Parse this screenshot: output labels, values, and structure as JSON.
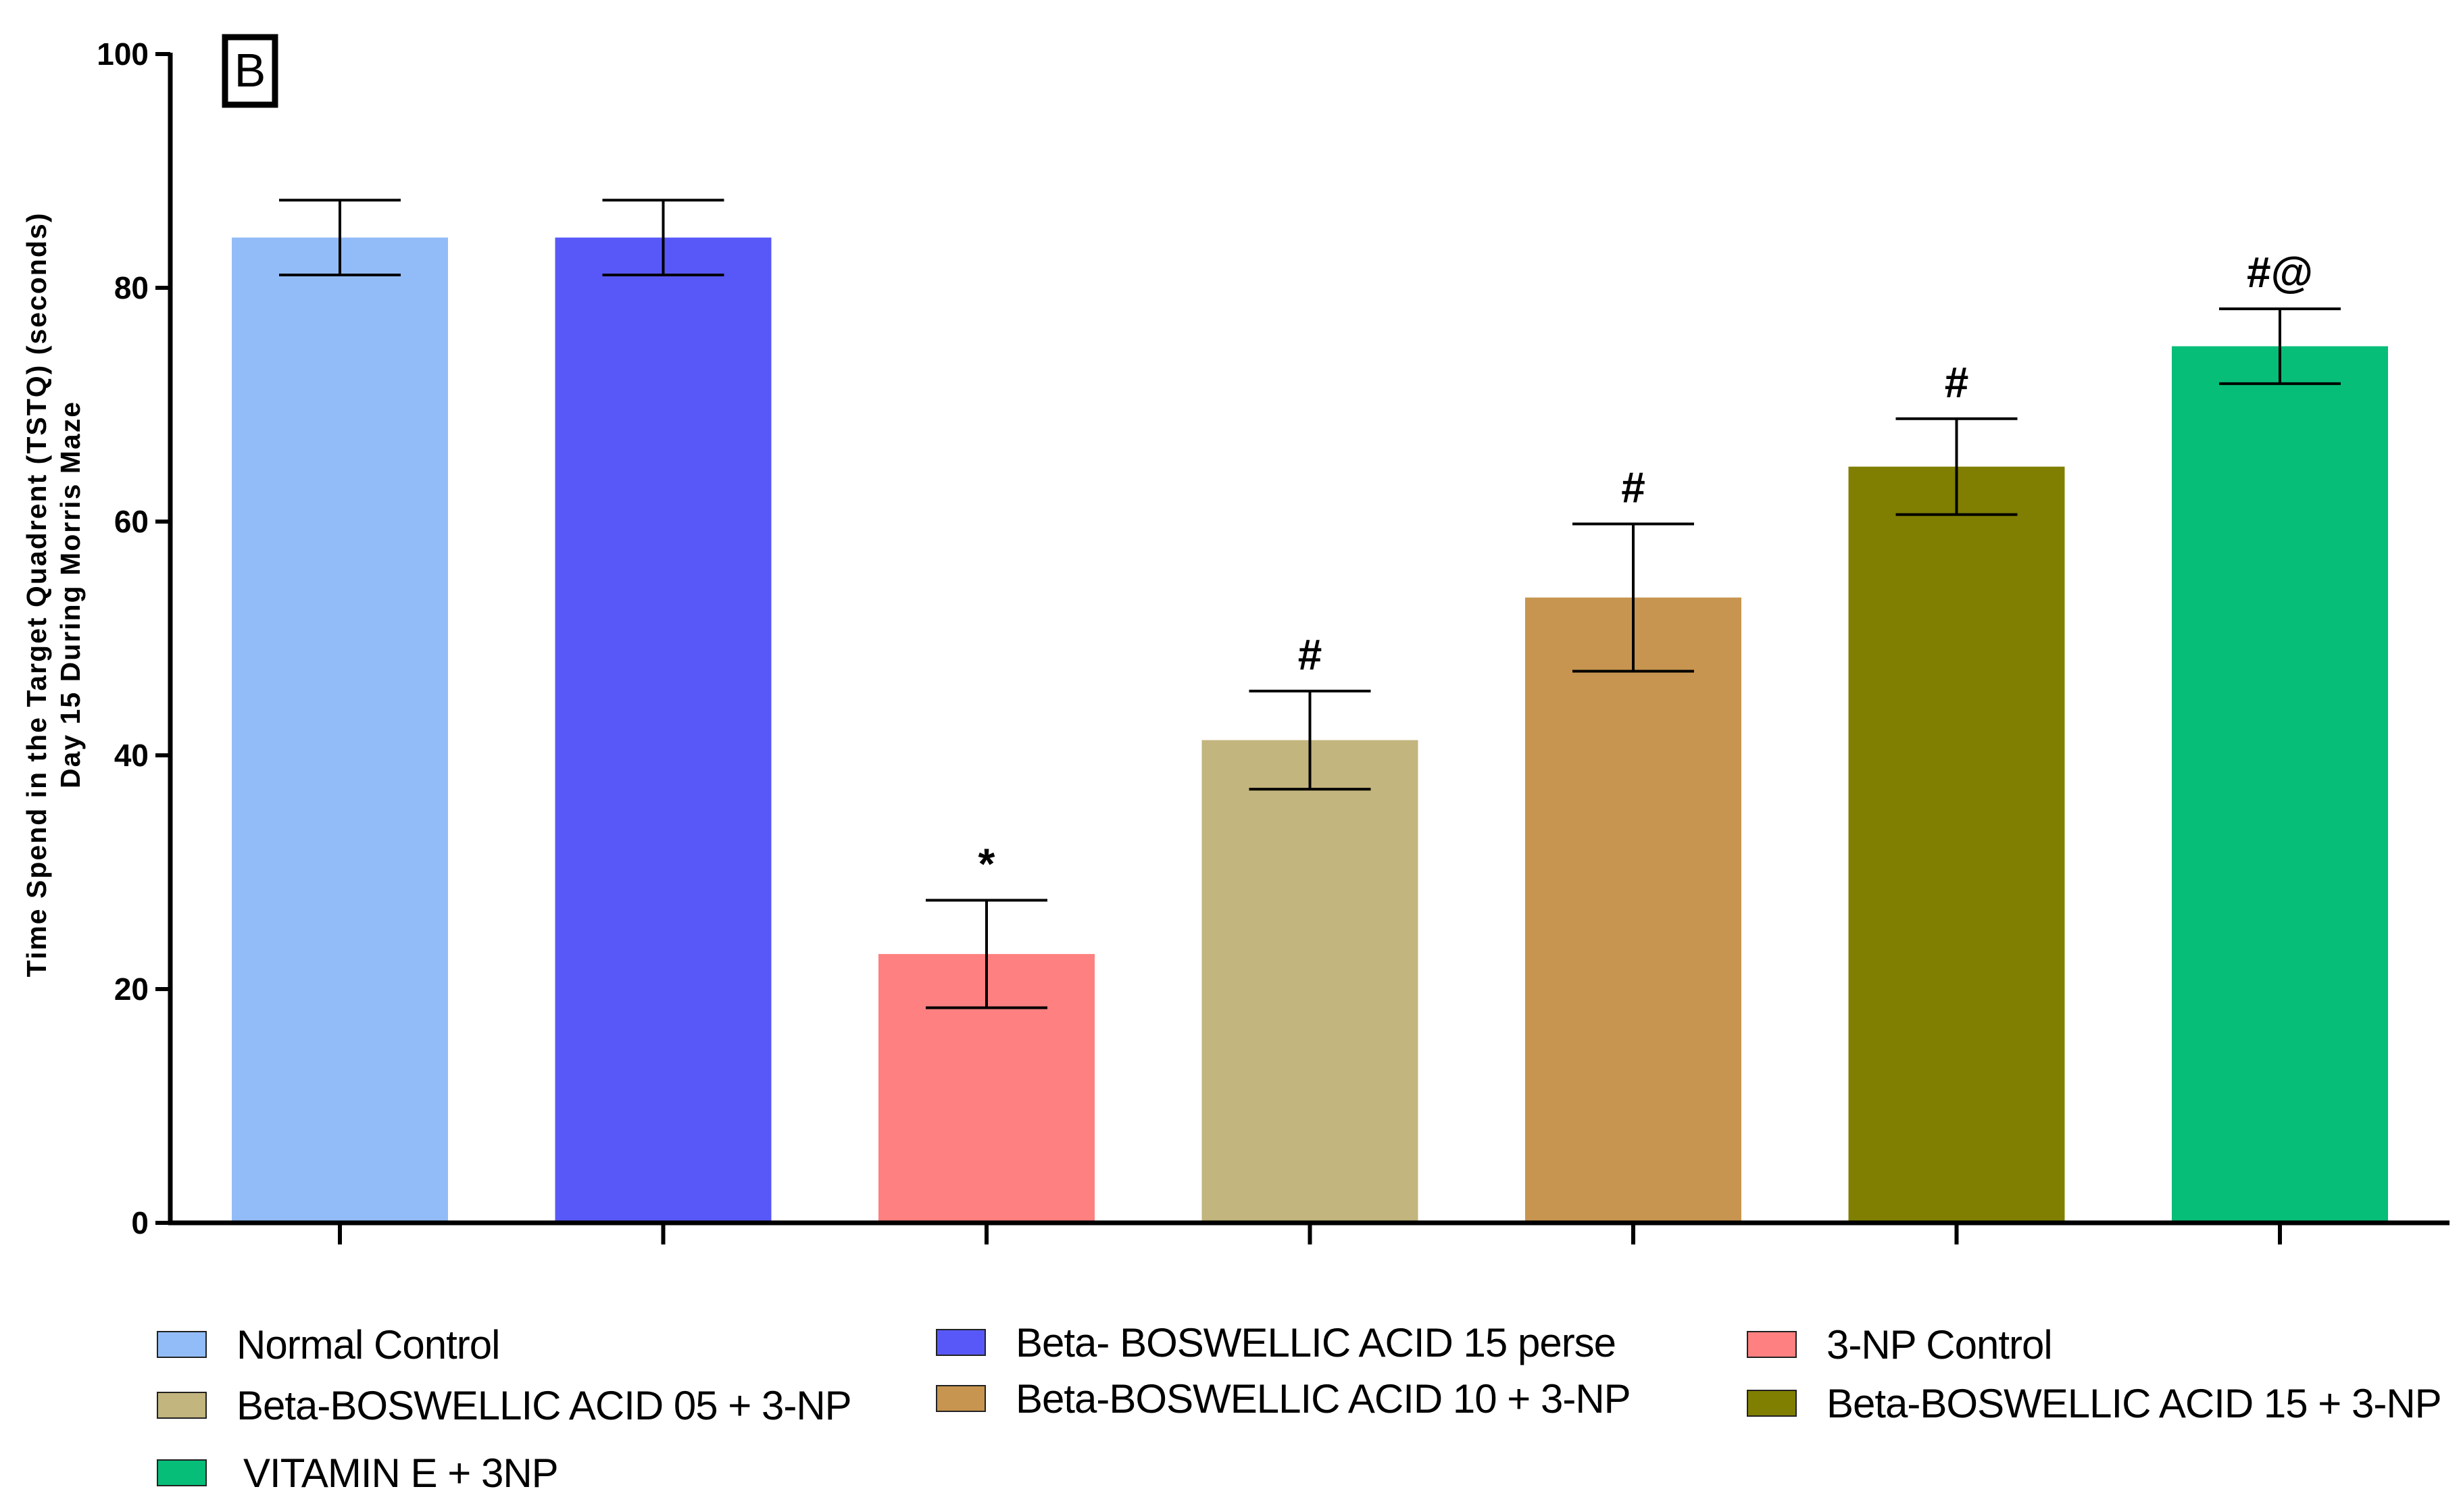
{
  "chart_data": {
    "type": "bar",
    "panel_label": "B",
    "ylabel_line1": "Time Spend in the Target Quadrent (TSTQ) (seconds)",
    "ylabel_line2": "Day 15 During Morris Maze",
    "ylim": [
      0,
      100
    ],
    "yticks": [
      "0",
      "20",
      "40",
      "60",
      "80",
      "100"
    ],
    "categories": [
      "Normal Control",
      "Beta- BOSWELLIC ACID 15 perse",
      "3-NP Control",
      "Beta-BOSWELLIC ACID 05 + 3-NP",
      "Beta-BOSWELLIC ACID 10 + 3-NP",
      "Beta-BOSWELLIC ACID 15 + 3-NP",
      "VITAMIN E + 3NP"
    ],
    "values": [
      84.3,
      84.3,
      23.0,
      41.3,
      53.5,
      64.7,
      75.0
    ],
    "errors": [
      3.2,
      3.2,
      4.6,
      4.2,
      6.3,
      4.1,
      3.2
    ],
    "annotations": [
      "",
      "",
      "*",
      "#",
      "#",
      "#",
      "#@"
    ],
    "colors": [
      "#92bcf7",
      "#5858f8",
      "#fe8080",
      "#c2b57d",
      "#c79550",
      "#807f01",
      "#07be78"
    ],
    "grid": false
  },
  "legend": [
    {
      "label": "Normal Control",
      "color": "#92bcf7"
    },
    {
      "label": "Beta- BOSWELLIC ACID 15 perse",
      "color": "#5858f8"
    },
    {
      "label": "3-NP Control",
      "color": "#fe8080"
    },
    {
      "label": "Beta-BOSWELLIC ACID 05 + 3-NP",
      "color": "#c2b57d"
    },
    {
      "label": "Beta-BOSWELLIC ACID 10 + 3-NP",
      "color": "#c79550"
    },
    {
      "label": "Beta-BOSWELLIC ACID 15 + 3-NP",
      "color": "#807f01"
    },
    {
      "label": "VITAMIN E + 3NP",
      "color": "#07be78"
    }
  ]
}
